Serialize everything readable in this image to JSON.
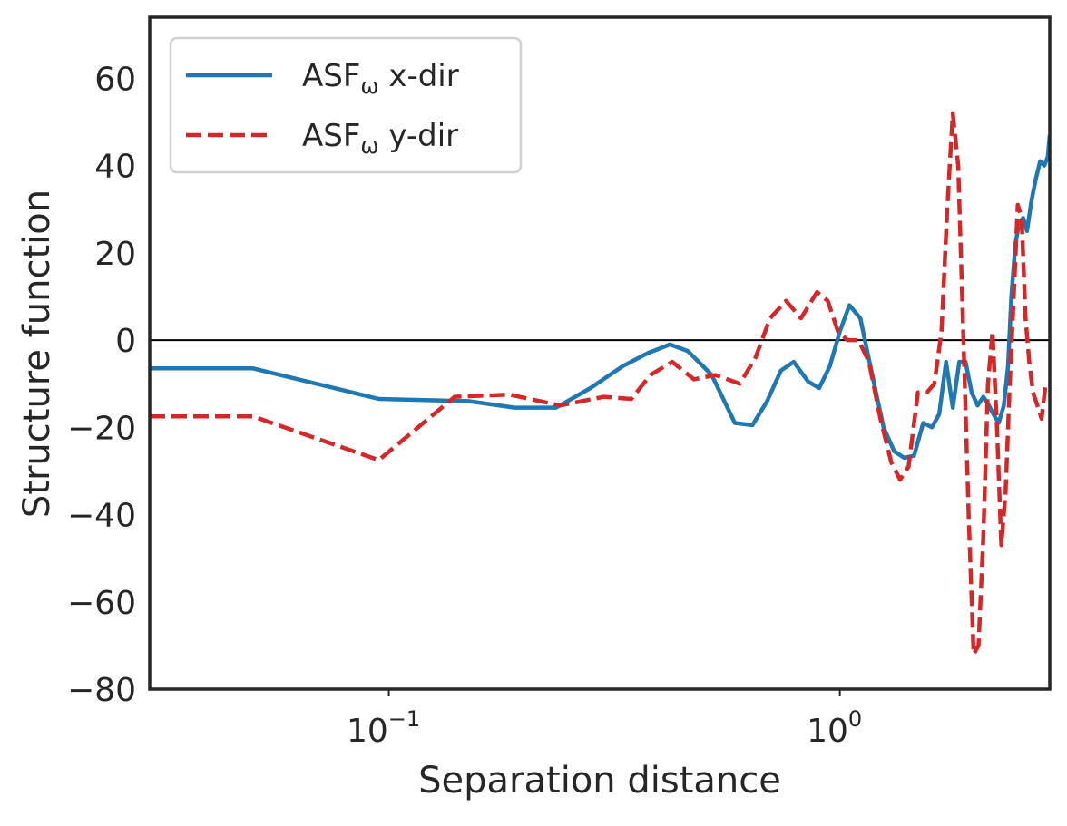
{
  "chart_data": {
    "type": "line",
    "xlabel": "Separation distance",
    "ylabel": "Structure function",
    "xscale": "log",
    "xlim": [
      0.0295,
      2.92
    ],
    "ylim": [
      -80,
      74
    ],
    "yticks": [
      -80,
      -60,
      -40,
      -20,
      0,
      20,
      40,
      60
    ],
    "ytick_labels": [
      "−80",
      "−60",
      "−40",
      "−20",
      "0",
      "20",
      "40",
      "60"
    ],
    "xticks": [
      {
        "value": 0.1,
        "base": "10",
        "exp": "−1"
      },
      {
        "value": 1,
        "base": "10",
        "exp": "0"
      }
    ],
    "grid": false,
    "legend_position": "top-left",
    "zero_line": true,
    "series": [
      {
        "name_main": "ASF",
        "name_sub": "ω",
        "name_rest": " x-dir",
        "color": "#1f77b4",
        "style": "solid",
        "x": [
          0.0295,
          0.05,
          0.095,
          0.15,
          0.19,
          0.235,
          0.28,
          0.33,
          0.375,
          0.42,
          0.46,
          0.52,
          0.585,
          0.64,
          0.69,
          0.74,
          0.79,
          0.85,
          0.9,
          0.95,
          1.0,
          1.05,
          1.11,
          1.18,
          1.25,
          1.32,
          1.39,
          1.46,
          1.53,
          1.6,
          1.66,
          1.72,
          1.78,
          1.84,
          1.9,
          1.96,
          2.02,
          2.08,
          2.14,
          2.19,
          2.25,
          2.31,
          2.36,
          2.4,
          2.45,
          2.5,
          2.55,
          2.6,
          2.66,
          2.72,
          2.78,
          2.84,
          2.89,
          2.92
        ],
        "y": [
          -6.5,
          -6.5,
          -13.5,
          -14,
          -15.5,
          -15.5,
          -11,
          -6,
          -3,
          -1,
          -2.5,
          -8,
          -19,
          -19.5,
          -14,
          -7,
          -5,
          -9.5,
          -11,
          -6,
          2,
          8,
          5,
          -8,
          -20,
          -25.5,
          -27,
          -26.5,
          -19,
          -20,
          -17,
          -5,
          -15.5,
          -5,
          -5,
          -12,
          -15,
          -13,
          -15,
          -17,
          -19,
          -15,
          -6,
          10,
          22,
          27,
          28,
          25,
          32,
          37,
          41,
          40,
          42,
          47
        ]
      },
      {
        "name_main": "ASF",
        "name_sub": "ω",
        "name_rest": " y-dir",
        "color": "#d62728",
        "style": "dashed",
        "x": [
          0.0295,
          0.05,
          0.095,
          0.14,
          0.185,
          0.24,
          0.3,
          0.345,
          0.38,
          0.425,
          0.475,
          0.53,
          0.6,
          0.65,
          0.7,
          0.76,
          0.82,
          0.89,
          0.94,
          0.99,
          1.04,
          1.1,
          1.16,
          1.23,
          1.3,
          1.36,
          1.42,
          1.49,
          1.56,
          1.62,
          1.68,
          1.73,
          1.78,
          1.83,
          1.88,
          1.93,
          1.98,
          2.03,
          2.08,
          2.13,
          2.18,
          2.23,
          2.28,
          2.33,
          2.38,
          2.43,
          2.48,
          2.53,
          2.58,
          2.63,
          2.68,
          2.74,
          2.8,
          2.86,
          2.92
        ],
        "y": [
          -17.5,
          -17.5,
          -27.5,
          -13,
          -12.5,
          -15,
          -13,
          -13.5,
          -8,
          -5,
          -9,
          -8,
          -10,
          -4,
          5,
          9,
          5,
          11,
          9,
          2,
          0,
          0,
          -5,
          -18,
          -28,
          -32,
          -29,
          -12,
          -12,
          -10,
          2,
          30,
          52,
          40,
          0,
          -40,
          -72,
          -70,
          -45,
          -10,
          2,
          -20,
          -47,
          -35,
          -10,
          10,
          31,
          28,
          5,
          -5,
          -12,
          -15,
          -18,
          -10,
          -10
        ]
      }
    ]
  }
}
